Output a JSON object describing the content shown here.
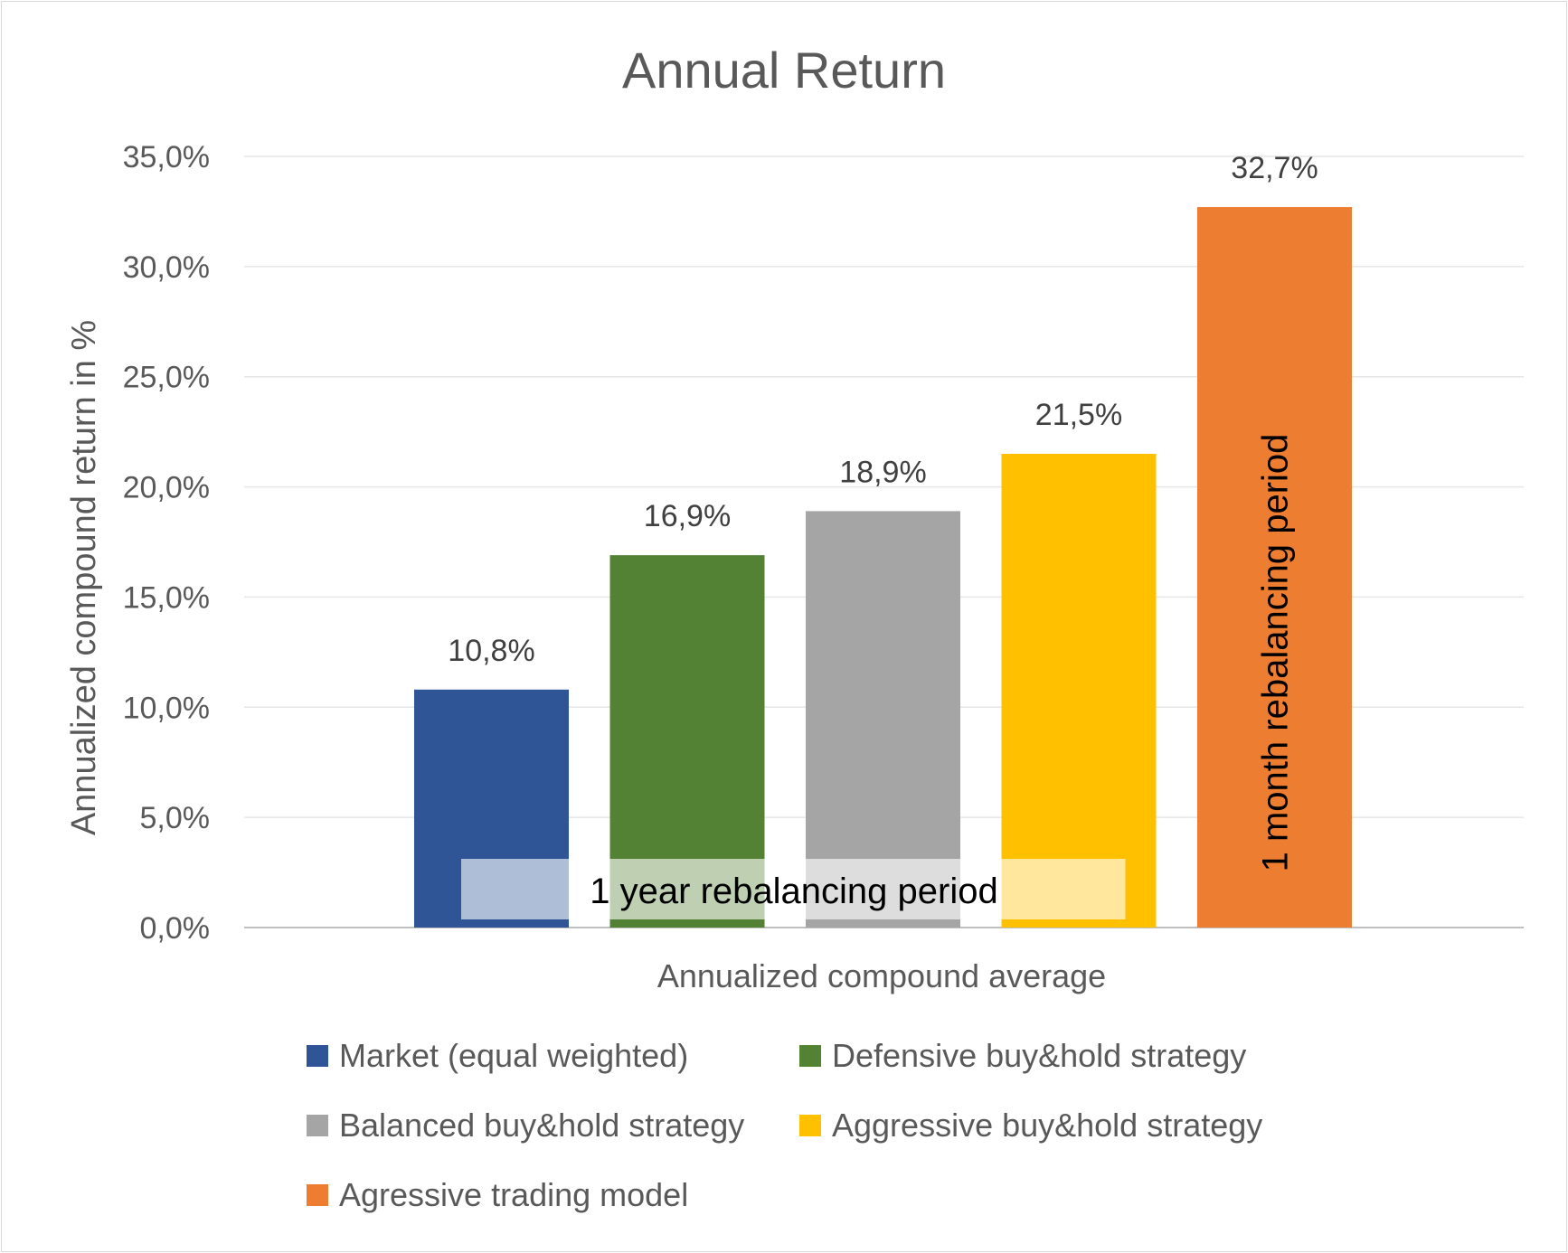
{
  "chart_data": {
    "type": "bar",
    "title": "Annual Return",
    "xlabel": "Annualized compound average",
    "ylabel": "Annualized compound return in %",
    "ylim": [
      0,
      35
    ],
    "y_ticks": [
      "0,0%",
      "5,0%",
      "10,0%",
      "15,0%",
      "20,0%",
      "25,0%",
      "30,0%",
      "35,0%"
    ],
    "grid": true,
    "legend_position": "bottom",
    "series": [
      {
        "name": "Market (equal weighted)",
        "value": 10.8,
        "label": "10,8%",
        "color": "#2f5597"
      },
      {
        "name": "Defensive buy&hold strategy",
        "value": 16.9,
        "label": "16,9%",
        "color": "#548235"
      },
      {
        "name": "Balanced buy&hold strategy",
        "value": 18.9,
        "label": "18,9%",
        "color": "#a5a5a5"
      },
      {
        "name": "Aggressive buy&hold strategy",
        "value": 21.5,
        "label": "21,5%",
        "color": "#ffc000"
      },
      {
        "name": "Agressive trading model",
        "value": 32.7,
        "label": "32,7%",
        "color": "#ed7d31"
      }
    ],
    "annotations": {
      "year_band": "1 year rebalancing period",
      "month_band": "1 month rebalancing period"
    }
  }
}
